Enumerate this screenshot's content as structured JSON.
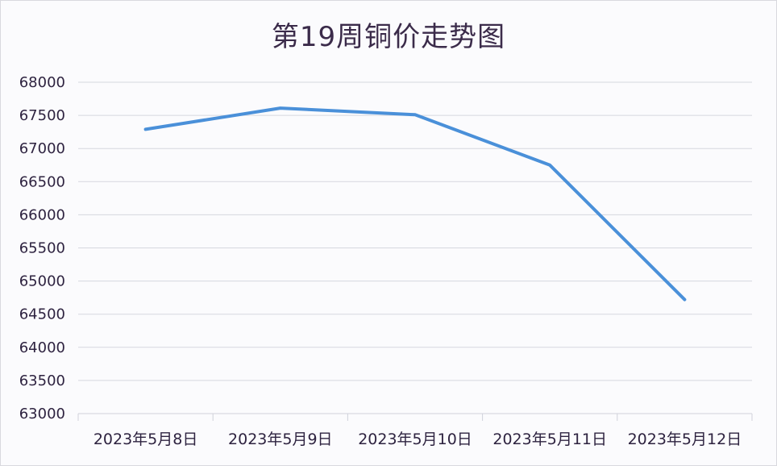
{
  "chart_data": {
    "type": "line",
    "title": "第19周铜价走势图",
    "xlabel": "",
    "ylabel": "",
    "categories": [
      "2023年5月8日",
      "2023年5月9日",
      "2023年5月10日",
      "2023年5月11日",
      "2023年5月12日"
    ],
    "series": [
      {
        "name": "铜价",
        "values": [
          67290,
          67610,
          67510,
          66750,
          64720
        ],
        "color": "#4a90d9"
      }
    ],
    "ylim": [
      63000,
      68000
    ],
    "yticks": [
      68000,
      67500,
      67000,
      66500,
      66000,
      65500,
      65000,
      64500,
      64000,
      63500,
      63000
    ],
    "ytick_labels": [
      "68000",
      "67500",
      "67000",
      "66500",
      "66000",
      "65500",
      "65000",
      "64500",
      "64000",
      "63500",
      "63000"
    ],
    "grid": true,
    "legend": "none"
  }
}
